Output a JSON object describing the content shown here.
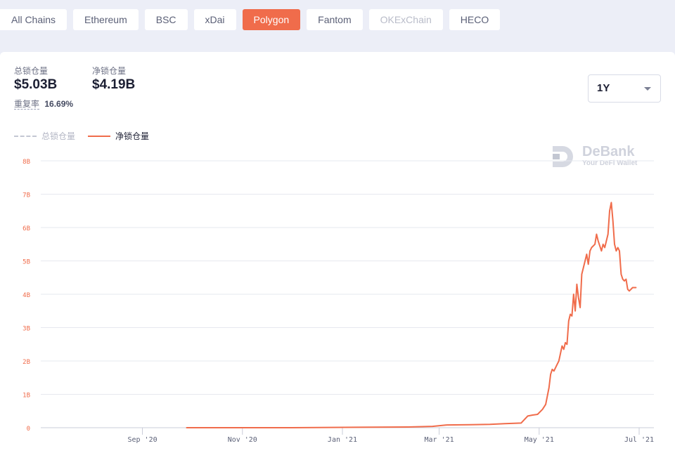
{
  "tabs": [
    {
      "label": "All Chains",
      "state": "normal"
    },
    {
      "label": "Ethereum",
      "state": "normal"
    },
    {
      "label": "BSC",
      "state": "normal"
    },
    {
      "label": "xDai",
      "state": "normal"
    },
    {
      "label": "Polygon",
      "state": "active"
    },
    {
      "label": "Fantom",
      "state": "normal"
    },
    {
      "label": "OKExChain",
      "state": "disabled"
    },
    {
      "label": "HECO",
      "state": "normal"
    }
  ],
  "stats": {
    "total_label": "总锁仓量",
    "total_value": "$5.03B",
    "net_label": "净锁仓量",
    "net_value": "$4.19B",
    "ratio_label": "重复率",
    "ratio_value": "16.69%"
  },
  "range_select": {
    "value": "1Y"
  },
  "legend": {
    "total": "总锁仓量",
    "net": "净锁仓量"
  },
  "watermark": {
    "brand": "DeBank",
    "tagline": "Your DeFi Wallet"
  },
  "colors": {
    "accent": "#f06c4b",
    "grid": "#e6e8ef",
    "axis_text": "#f06c4b",
    "x_text": "#5b6077"
  },
  "chart_data": {
    "type": "line",
    "title": "",
    "xlabel": "",
    "ylabel": "",
    "ylim": [
      0,
      8
    ],
    "y_unit": "B",
    "y_ticks": [
      "0",
      "1B",
      "2B",
      "3B",
      "4B",
      "5B",
      "6B",
      "7B",
      "8B"
    ],
    "x_range": [
      "2020-07-01",
      "2021-07-10"
    ],
    "x_ticks": [
      {
        "label": "Sep '20",
        "date": "2020-09-01"
      },
      {
        "label": "Nov '20",
        "date": "2020-11-01"
      },
      {
        "label": "Jan '21",
        "date": "2021-01-01"
      },
      {
        "label": "Mar '21",
        "date": "2021-03-01"
      },
      {
        "label": "May '21",
        "date": "2021-05-01"
      },
      {
        "label": "Jul '21",
        "date": "2021-07-01"
      }
    ],
    "grid": true,
    "series": [
      {
        "name": "净锁仓量",
        "style": "solid",
        "points": [
          [
            "2020-09-28",
            0.0
          ],
          [
            "2020-12-01",
            0.0
          ],
          [
            "2021-02-10",
            0.02
          ],
          [
            "2021-02-25",
            0.04
          ],
          [
            "2021-03-05",
            0.08
          ],
          [
            "2021-03-20",
            0.09
          ],
          [
            "2021-04-01",
            0.1
          ],
          [
            "2021-04-10",
            0.12
          ],
          [
            "2021-04-20",
            0.14
          ],
          [
            "2021-04-24",
            0.35
          ],
          [
            "2021-04-27",
            0.38
          ],
          [
            "2021-04-30",
            0.4
          ],
          [
            "2021-05-03",
            0.55
          ],
          [
            "2021-05-05",
            0.7
          ],
          [
            "2021-05-07",
            1.2
          ],
          [
            "2021-05-08",
            1.6
          ],
          [
            "2021-05-09",
            1.75
          ],
          [
            "2021-05-10",
            1.7
          ],
          [
            "2021-05-12",
            1.9
          ],
          [
            "2021-05-13",
            2.0
          ],
          [
            "2021-05-15",
            2.45
          ],
          [
            "2021-05-16",
            2.35
          ],
          [
            "2021-05-17",
            2.55
          ],
          [
            "2021-05-18",
            2.5
          ],
          [
            "2021-05-19",
            3.2
          ],
          [
            "2021-05-20",
            3.4
          ],
          [
            "2021-05-21",
            3.35
          ],
          [
            "2021-05-22",
            4.0
          ],
          [
            "2021-05-23",
            3.5
          ],
          [
            "2021-05-24",
            4.3
          ],
          [
            "2021-05-25",
            3.9
          ],
          [
            "2021-05-26",
            3.6
          ],
          [
            "2021-05-27",
            4.6
          ],
          [
            "2021-05-29",
            5.0
          ],
          [
            "2021-05-30",
            5.2
          ],
          [
            "2021-05-31",
            4.9
          ],
          [
            "2021-06-01",
            5.3
          ],
          [
            "2021-06-02",
            5.4
          ],
          [
            "2021-06-04",
            5.5
          ],
          [
            "2021-06-05",
            5.8
          ],
          [
            "2021-06-06",
            5.6
          ],
          [
            "2021-06-08",
            5.3
          ],
          [
            "2021-06-09",
            5.5
          ],
          [
            "2021-06-10",
            5.4
          ],
          [
            "2021-06-11",
            5.6
          ],
          [
            "2021-06-12",
            5.8
          ],
          [
            "2021-06-13",
            6.5
          ],
          [
            "2021-06-14",
            6.75
          ],
          [
            "2021-06-15",
            6.2
          ],
          [
            "2021-06-16",
            5.5
          ],
          [
            "2021-06-17",
            5.3
          ],
          [
            "2021-06-18",
            5.4
          ],
          [
            "2021-06-19",
            5.3
          ],
          [
            "2021-06-20",
            4.6
          ],
          [
            "2021-06-21",
            4.45
          ],
          [
            "2021-06-22",
            4.4
          ],
          [
            "2021-06-23",
            4.45
          ],
          [
            "2021-06-24",
            4.15
          ],
          [
            "2021-06-25",
            4.1
          ],
          [
            "2021-06-26",
            4.15
          ],
          [
            "2021-06-27",
            4.2
          ],
          [
            "2021-06-29",
            4.2
          ]
        ]
      }
    ]
  }
}
